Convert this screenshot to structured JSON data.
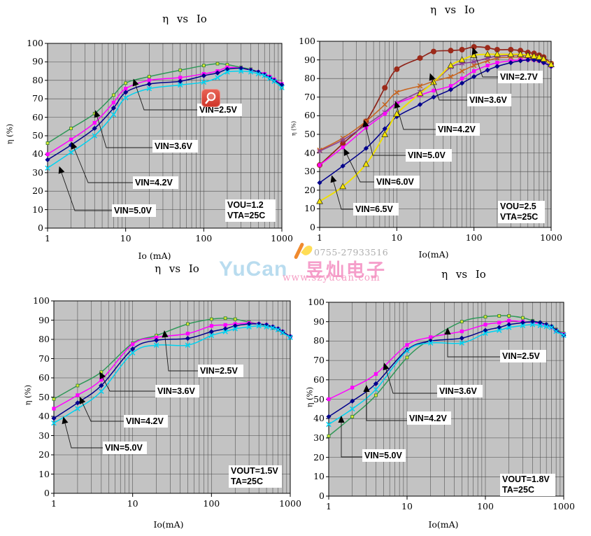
{
  "watermark": {
    "phone": "0755-27933516",
    "brand": "YuCan",
    "company": "昱灿电子",
    "url": "www.szyucan.com",
    "brand_color": "#b9dcef",
    "pink": "#f17db8",
    "gray": "#aeaeae"
  },
  "zoom_icon": {
    "name": "magnifier",
    "color": "#d84030"
  },
  "chart_data": [
    {
      "id": "vout-1p2",
      "type": "line",
      "title": "η vs Io",
      "xlabel": "Io (mA)",
      "ylabel": "η (%)",
      "xscale": "log",
      "xlim": [
        1,
        1000
      ],
      "ylim": [
        0,
        100
      ],
      "xticks": [
        "1",
        "10",
        "100",
        "1000"
      ],
      "yticks": [
        0,
        10,
        20,
        30,
        40,
        50,
        60,
        70,
        80,
        90,
        100
      ],
      "grid": true,
      "plot_bg": "#c3c3c3",
      "info_lines": [
        "VOU=1.2",
        "VTA=25C"
      ],
      "callouts": [
        "VIN=2.5V",
        "VIN=3.6V",
        "VIN=4.2V",
        "VIN=5.0V"
      ],
      "series": [
        {
          "name": "VIN=2.5V",
          "color": "#2f9858",
          "marker": "dotsq",
          "marker_color": "#d9e830",
          "marker_stroke": "#2e7d32",
          "x": [
            1,
            2,
            4,
            7,
            10,
            20,
            50,
            100,
            150,
            200,
            300,
            400,
            500,
            600,
            700,
            800,
            1000
          ],
          "y": [
            46,
            54,
            62,
            72,
            78.5,
            82,
            85.5,
            88,
            89,
            88.5,
            87,
            86,
            84.5,
            83.5,
            82,
            80,
            76.5
          ]
        },
        {
          "name": "VIN=3.6V",
          "color": "#ff00ff",
          "marker": "square",
          "marker_color": "#ff00ff",
          "x": [
            1,
            2,
            4,
            7,
            10,
            20,
            50,
            100,
            150,
            200,
            300,
            400,
            500,
            600,
            700,
            800,
            1000
          ],
          "y": [
            40,
            48,
            57,
            68,
            75.5,
            80,
            81.5,
            83.5,
            85,
            87,
            86.5,
            85.5,
            84.5,
            83.5,
            82,
            80.5,
            78
          ]
        },
        {
          "name": "VIN=4.2V",
          "color": "#00008b",
          "marker": "diamond",
          "marker_color": "#00008b",
          "x": [
            1,
            2,
            4,
            7,
            10,
            20,
            50,
            100,
            150,
            200,
            300,
            400,
            500,
            600,
            700,
            800,
            1000
          ],
          "y": [
            37,
            45,
            54,
            65,
            73.5,
            78,
            79.5,
            82.5,
            84,
            86,
            86.5,
            85.5,
            84.5,
            83,
            81.5,
            80,
            77.5
          ]
        },
        {
          "name": "VIN=5.0V",
          "color": "#00d2f0",
          "marker": "xcross",
          "marker_color": "#00d2f0",
          "x": [
            1,
            2,
            4,
            7,
            10,
            20,
            50,
            100,
            150,
            200,
            300,
            400,
            500,
            600,
            700,
            800,
            1000
          ],
          "y": [
            32.5,
            41,
            50,
            61.5,
            70.5,
            75.5,
            77.5,
            79,
            81.5,
            84.5,
            85,
            84.5,
            83.5,
            82.5,
            81,
            79.5,
            76
          ]
        }
      ]
    },
    {
      "id": "vout-2p5",
      "type": "line",
      "title": "η vs Io",
      "xlabel": "Io(mA)",
      "ylabel": "η (%)",
      "xscale": "log",
      "xlim": [
        1,
        1000
      ],
      "ylim": [
        0,
        100
      ],
      "xticks": [
        "1",
        "10",
        "100",
        "1000"
      ],
      "yticks": [
        0,
        10,
        20,
        30,
        40,
        50,
        60,
        70,
        80,
        90,
        100
      ],
      "grid": true,
      "plot_bg": "#c3c3c3",
      "info_lines": [
        "VOU=2.5",
        "VTA=25C"
      ],
      "callouts": [
        "VIN=2.7V",
        "VIN=3.6V",
        "VIN=4.2V",
        "VIN=5.0V",
        "VIN=6.0V",
        "VIN=6.5V"
      ],
      "series": [
        {
          "name": "VIN=2.7V",
          "color": "#8f241a",
          "marker": "circle",
          "marker_color": "#9c2a1a",
          "width": 1.7,
          "x": [
            1,
            2,
            4,
            7,
            10,
            20,
            30,
            50,
            70,
            100,
            150,
            200,
            300,
            400,
            500,
            600,
            700,
            800,
            1000
          ],
          "y": [
            33.5,
            45,
            57,
            75,
            85,
            91,
            94.5,
            95,
            95.5,
            97,
            96.5,
            95.5,
            95.5,
            95,
            94,
            93.5,
            92.5,
            91.5,
            88
          ]
        },
        {
          "name": "VIN=3.6V",
          "color": "#c8641e",
          "marker": "xcross",
          "marker_color": "#c8641e",
          "x": [
            1,
            2,
            4,
            7,
            10,
            20,
            30,
            50,
            70,
            100,
            150,
            200,
            300,
            400,
            500,
            600,
            700,
            800,
            1000
          ],
          "y": [
            41.5,
            48,
            57,
            66,
            72.5,
            76,
            78.5,
            81,
            84,
            87,
            89.5,
            91,
            91.5,
            91.5,
            91,
            90.5,
            90,
            89.5,
            88
          ]
        },
        {
          "name": "VIN=4.2V",
          "color": "#8a3a96",
          "marker": "star",
          "marker_color": "#8a3a96",
          "x": [
            1,
            2,
            4,
            7,
            10,
            20,
            30,
            50,
            70,
            100,
            150,
            200,
            300,
            400,
            500,
            600,
            700,
            800,
            1000
          ],
          "y": [
            41,
            47,
            55,
            62,
            67,
            73,
            78,
            86,
            88,
            89,
            91,
            92,
            92.5,
            92.5,
            92,
            91.5,
            91,
            90,
            87
          ]
        },
        {
          "name": "VIN=5.0V",
          "color": "#ff00ff",
          "marker": "square",
          "marker_color": "#ff00ff",
          "x": [
            1,
            2,
            4,
            7,
            10,
            20,
            30,
            50,
            70,
            100,
            150,
            200,
            300,
            400,
            500,
            600,
            700,
            800,
            1000
          ],
          "y": [
            33.5,
            43,
            53.5,
            61,
            66.5,
            71,
            73.5,
            76,
            80,
            84,
            87,
            88.5,
            89.5,
            90,
            90,
            90,
            89.5,
            88.5,
            86.5
          ]
        },
        {
          "name": "VIN=6.0V",
          "color": "#00008b",
          "marker": "diamond",
          "marker_color": "#00008b",
          "x": [
            1,
            2,
            4,
            7,
            10,
            20,
            30,
            50,
            70,
            100,
            150,
            200,
            300,
            400,
            500,
            600,
            700,
            800,
            1000
          ],
          "y": [
            24,
            33,
            42.5,
            53,
            59.5,
            66,
            70,
            74,
            77.5,
            81,
            84.5,
            86.5,
            88.5,
            89.5,
            90,
            90,
            89.5,
            88.5,
            86.5
          ]
        },
        {
          "name": "VIN=6.5V",
          "color": "#f0e000",
          "marker": "triangle",
          "marker_color": "#f6e500",
          "marker_stroke": "#222222",
          "width": 2,
          "x": [
            1,
            2,
            4,
            7,
            10,
            20,
            30,
            50,
            70,
            100,
            150,
            200,
            300,
            400,
            500,
            600,
            700,
            800,
            1000
          ],
          "y": [
            14,
            22,
            34,
            50,
            61,
            72,
            78,
            87,
            90,
            92.5,
            93,
            93,
            93,
            93,
            92.5,
            92,
            91.5,
            90.5,
            87.5
          ]
        }
      ]
    },
    {
      "id": "vout-1p5",
      "type": "line",
      "title": "η vs Io",
      "xlabel": "Io(mA)",
      "ylabel": "η (%)",
      "xscale": "log",
      "xlim": [
        1,
        1000
      ],
      "ylim": [
        0,
        100
      ],
      "xticks": [
        "1",
        "10",
        "100",
        "1000"
      ],
      "yticks": [
        0,
        10,
        20,
        30,
        40,
        50,
        60,
        70,
        80,
        90,
        100
      ],
      "grid": true,
      "plot_bg": "#c3c3c3",
      "info_lines": [
        "VOUT=1.5V",
        "TA=25C"
      ],
      "callouts": [
        "VIN=2.5V",
        "VIN=3.6V",
        "VIN=4.2V",
        "VIN=5.0V"
      ],
      "series": [
        {
          "name": "VIN=2.5V",
          "color": "#2f9858",
          "marker": "dotsq",
          "marker_color": "#d9e830",
          "marker_stroke": "#2e7d32",
          "x": [
            1,
            2,
            4,
            10,
            20,
            50,
            100,
            150,
            200,
            300,
            400,
            500,
            600,
            700,
            800,
            1000
          ],
          "y": [
            49,
            56,
            63,
            78,
            82,
            88,
            90.5,
            91,
            90.5,
            89,
            88,
            87,
            86,
            85,
            83.5,
            81
          ]
        },
        {
          "name": "VIN=3.6V",
          "color": "#ff00ff",
          "marker": "square",
          "marker_color": "#ff00ff",
          "x": [
            1,
            2,
            4,
            10,
            20,
            50,
            100,
            150,
            200,
            300,
            400,
            500,
            600,
            700,
            800,
            1000
          ],
          "y": [
            44,
            51,
            59,
            77.5,
            81,
            83,
            87,
            87.5,
            88,
            88.5,
            88,
            87.5,
            86.5,
            85.5,
            84,
            81.5
          ]
        },
        {
          "name": "VIN=4.2V",
          "color": "#00008b",
          "marker": "diamond",
          "marker_color": "#00008b",
          "x": [
            1,
            2,
            4,
            10,
            20,
            50,
            100,
            150,
            200,
            300,
            400,
            500,
            600,
            700,
            800,
            1000
          ],
          "y": [
            39,
            47,
            56,
            75,
            79.5,
            80.5,
            84,
            85.5,
            87,
            88,
            88,
            87.5,
            86.5,
            85.5,
            84,
            81.5
          ]
        },
        {
          "name": "VIN=5.0V",
          "color": "#00d2f0",
          "marker": "xcross",
          "marker_color": "#00d2f0",
          "x": [
            1,
            2,
            4,
            10,
            20,
            50,
            100,
            150,
            200,
            300,
            400,
            500,
            600,
            700,
            800,
            1000
          ],
          "y": [
            36.5,
            44,
            53,
            73,
            77,
            77,
            82,
            84,
            85.5,
            86.5,
            87,
            86.5,
            86,
            85,
            83.5,
            81
          ]
        }
      ]
    },
    {
      "id": "vout-1p8",
      "type": "line",
      "title": "η vs Io",
      "xlabel": "Io(mA)",
      "ylabel": "η (%)",
      "xscale": "log",
      "xlim": [
        1,
        1000
      ],
      "ylim": [
        0,
        100
      ],
      "xticks": [
        "1",
        "10",
        "100",
        "1000"
      ],
      "yticks": [
        0,
        10,
        20,
        30,
        40,
        50,
        60,
        70,
        80,
        90,
        100
      ],
      "grid": true,
      "plot_bg": "#c3c3c3",
      "info_lines": [
        "VOUT=1.8V",
        "TA=25C"
      ],
      "callouts": [
        "VIN=2.5V",
        "VIN=3.6V",
        "VIN=4.2V",
        "VIN=5.0V"
      ],
      "series": [
        {
          "name": "VIN=2.5V",
          "color": "#2f9858",
          "marker": "dotsq",
          "marker_color": "#d9e830",
          "marker_stroke": "#2e7d32",
          "x": [
            1,
            2,
            4,
            10,
            20,
            50,
            100,
            150,
            200,
            300,
            400,
            500,
            600,
            700,
            800,
            1000
          ],
          "y": [
            31,
            41,
            52,
            71.5,
            81,
            90,
            92.5,
            93,
            93,
            92,
            90.5,
            89.5,
            88.5,
            87.5,
            86,
            84
          ]
        },
        {
          "name": "VIN=3.6V",
          "color": "#ff00ff",
          "marker": "square",
          "marker_color": "#ff00ff",
          "x": [
            1,
            2,
            4,
            10,
            20,
            50,
            100,
            150,
            200,
            300,
            400,
            500,
            600,
            700,
            800,
            1000
          ],
          "y": [
            50,
            56,
            63,
            78,
            82,
            85,
            88.5,
            89.5,
            90.5,
            90,
            89.5,
            89,
            88,
            87,
            85.5,
            83.5
          ]
        },
        {
          "name": "VIN=4.2V",
          "color": "#00008b",
          "marker": "diamond",
          "marker_color": "#00008b",
          "x": [
            1,
            2,
            4,
            10,
            20,
            50,
            100,
            150,
            200,
            300,
            400,
            500,
            600,
            700,
            800,
            1000
          ],
          "y": [
            41,
            49,
            58,
            75.5,
            80,
            81.5,
            85.5,
            87,
            88.5,
            89.5,
            90,
            89.5,
            88.5,
            87.5,
            85.5,
            83
          ]
        },
        {
          "name": "VIN=5.0V",
          "color": "#00d2f0",
          "marker": "xcross",
          "marker_color": "#00d2f0",
          "x": [
            1,
            2,
            4,
            10,
            20,
            50,
            100,
            150,
            200,
            300,
            400,
            500,
            600,
            700,
            800,
            1000
          ],
          "y": [
            37,
            45,
            55,
            75,
            79,
            79,
            84,
            85.5,
            87,
            88,
            88.5,
            88,
            87.5,
            87,
            85,
            83
          ]
        }
      ]
    }
  ]
}
